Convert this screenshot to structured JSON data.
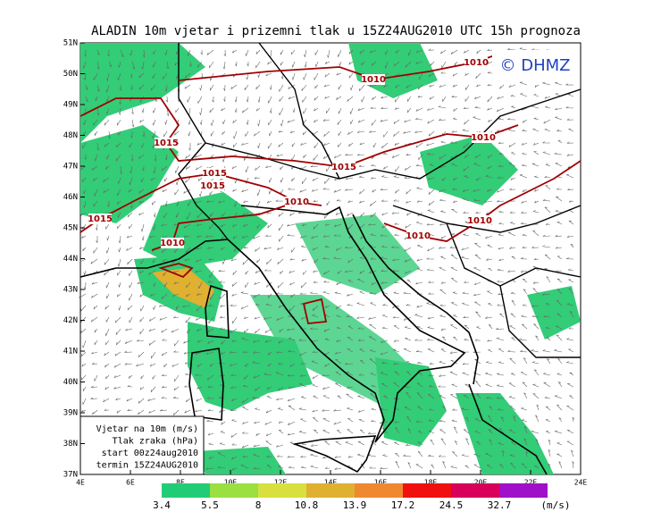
{
  "title": "ALADIN  10m vjetar i prizemni tlak u 15Z24AUG2010 UTC 15h prognoza",
  "badge": "© DHMZ",
  "lat_labels": [
    "51N",
    "50N",
    "49N",
    "48N",
    "47N",
    "46N",
    "45N",
    "44N",
    "43N",
    "42N",
    "41N",
    "40N",
    "39N",
    "38N",
    "37N"
  ],
  "lon_labels": [
    "4E",
    "6E",
    "8E",
    "10E",
    "12E",
    "14E",
    "16E",
    "18E",
    "20E",
    "22E",
    "24E"
  ],
  "legend_box": [
    "Vjetar na 10m (m/s)",
    "Tlak zraka (hPa)",
    "start 00z24aug2010",
    "termin 15Z24AUG2010"
  ],
  "colorbar": {
    "labels": [
      3.4,
      5.5,
      8,
      10.8,
      13.9,
      17.2,
      24.5,
      32.7
    ],
    "unit": "(m/s)",
    "colors": [
      "#22cc77",
      "#99e040",
      "#d8e040",
      "#e0b030",
      "#f08830",
      "#f01010",
      "#d8005a",
      "#a010c8"
    ]
  },
  "isobar_labels": [
    "1010",
    "1010",
    "1010",
    "1015",
    "1015",
    "1015",
    "1015",
    "1010",
    "1015",
    "1010",
    "1010",
    "1010"
  ]
}
